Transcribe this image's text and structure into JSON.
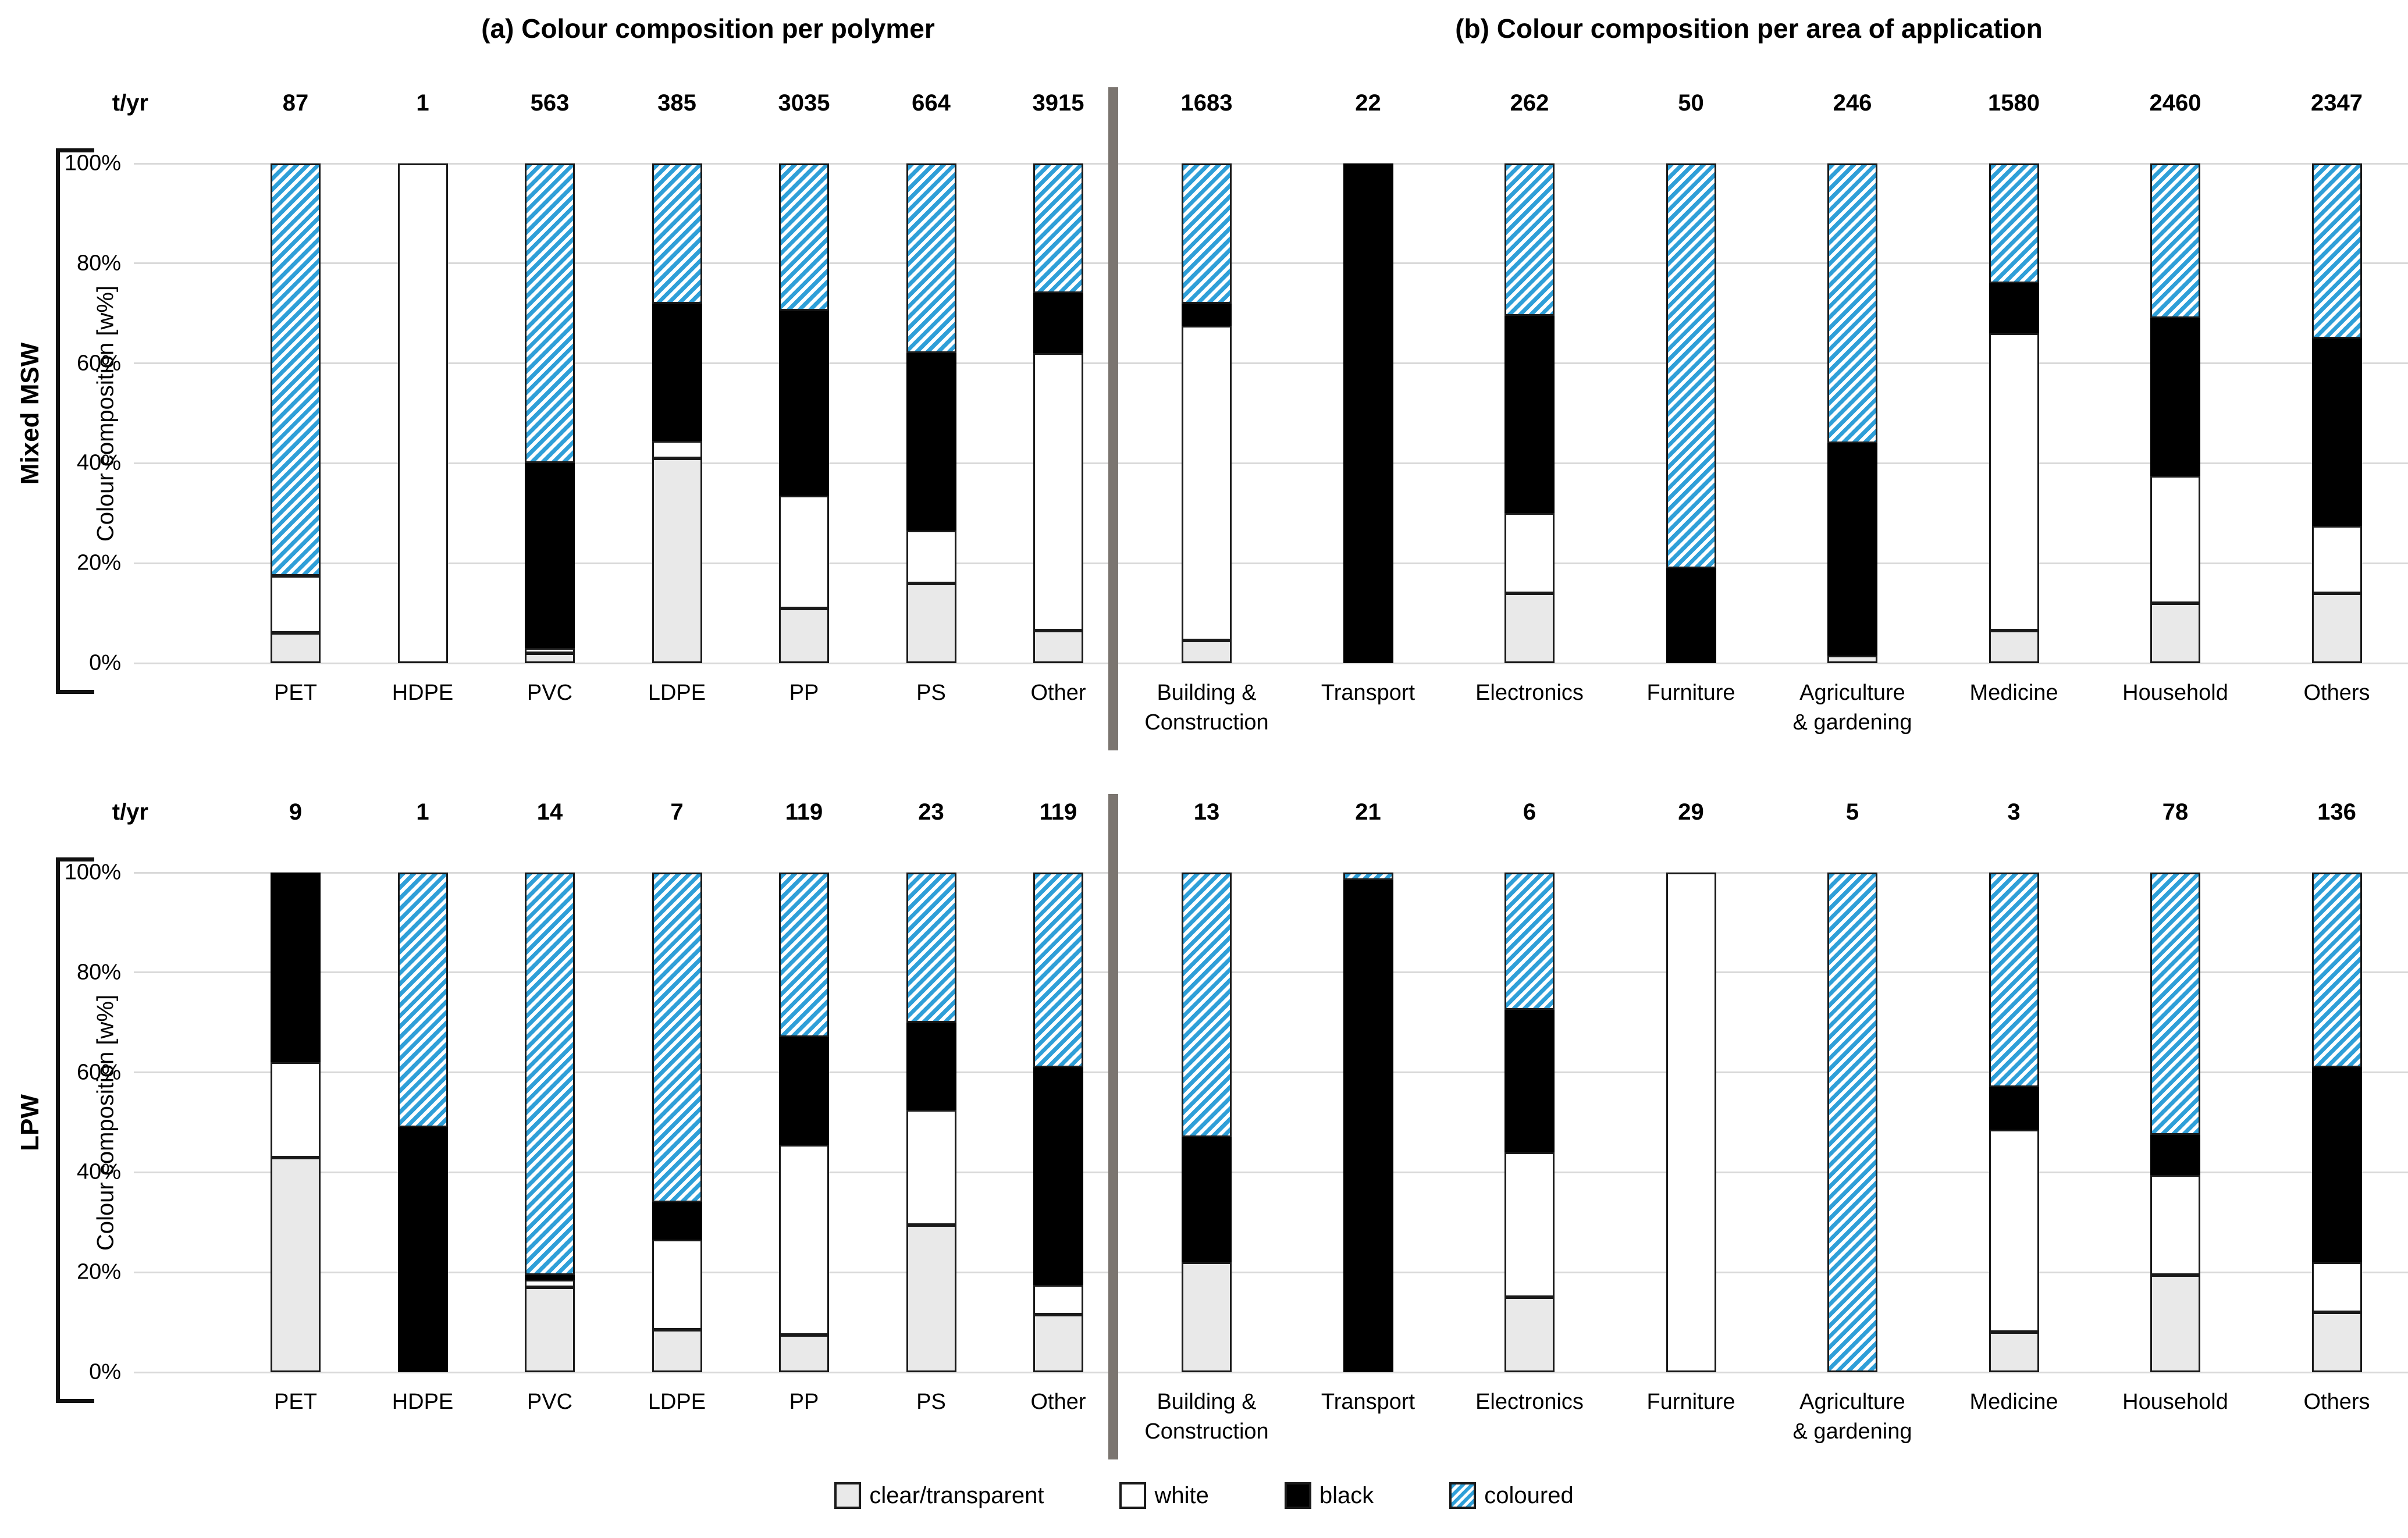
{
  "titles": {
    "a": "(a) Colour composition per polymer",
    "b": "(b) Colour composition per area of application"
  },
  "tyr_label": "t/yr",
  "y_axis": {
    "label": "Colour composition [w%]",
    "ticks": [
      "100%",
      "80%",
      "60%",
      "40%",
      "20%",
      "0%"
    ]
  },
  "legend": [
    {
      "key": "clear",
      "label": "clear/transparent"
    },
    {
      "key": "white",
      "label": "white"
    },
    {
      "key": "black",
      "label": "black"
    },
    {
      "key": "coloured",
      "label": "coloured"
    }
  ],
  "colors": {
    "clear_fill": "#e9e9e9",
    "white_fill": "#ffffff",
    "black_fill": "#000000",
    "coloured_stripe": "#2f9fd8",
    "bar_border": "#1a1a1a",
    "gridline": "#d9d9d9",
    "divider": "#7b7570"
  },
  "series_keys": [
    "clear",
    "white",
    "black",
    "coloured"
  ],
  "chart_data": [
    {
      "type": "bar",
      "stacked": true,
      "group": "Mixed MSW",
      "ylabel": "Colour composition [w%]",
      "ylim": [
        0,
        100
      ],
      "panels": [
        {
          "id": "a",
          "categories": [
            {
              "label": "PET",
              "tyr": "87",
              "clear": 6,
              "white": 11.5,
              "black": 0,
              "coloured": 82.5
            },
            {
              "label": "HDPE",
              "tyr": "1",
              "clear": 0,
              "white": 100,
              "black": 0,
              "coloured": 0
            },
            {
              "label": "PVC",
              "tyr": "563",
              "clear": 2,
              "white": 1,
              "black": 37,
              "coloured": 60
            },
            {
              "label": "LDPE",
              "tyr": "385",
              "clear": 41,
              "white": 3.5,
              "black": 27.5,
              "coloured": 28
            },
            {
              "label": "PP",
              "tyr": "3035",
              "clear": 11,
              "white": 22.5,
              "black": 37,
              "coloured": 29.5
            },
            {
              "label": "PS",
              "tyr": "664",
              "clear": 16,
              "white": 10.5,
              "black": 35.5,
              "coloured": 38
            },
            {
              "label": "Other",
              "tyr": "3915",
              "clear": 6.5,
              "white": 55.5,
              "black": 12,
              "coloured": 26
            }
          ]
        },
        {
          "id": "b",
          "categories": [
            {
              "label": "Building &\nConstruction",
              "tyr": "1683",
              "clear": 4.5,
              "white": 63,
              "black": 4.5,
              "coloured": 28
            },
            {
              "label": "Transport",
              "tyr": "22",
              "clear": 0,
              "white": 0,
              "black": 100,
              "coloured": 0
            },
            {
              "label": "Electronics",
              "tyr": "262",
              "clear": 14,
              "white": 16,
              "black": 39.5,
              "coloured": 30.5
            },
            {
              "label": "Furniture",
              "tyr": "50",
              "clear": 0,
              "white": 0,
              "black": 19,
              "coloured": 81
            },
            {
              "label": "Agriculture\n& gardening",
              "tyr": "246",
              "clear": 1.5,
              "white": 0,
              "black": 42.5,
              "coloured": 56
            },
            {
              "label": "Medicine",
              "tyr": "1580",
              "clear": 6.5,
              "white": 59.5,
              "black": 10,
              "coloured": 24
            },
            {
              "label": "Household",
              "tyr": "2460",
              "clear": 12,
              "white": 25.5,
              "black": 31.5,
              "coloured": 31
            },
            {
              "label": "Others",
              "tyr": "2347",
              "clear": 14,
              "white": 13.5,
              "black": 37.5,
              "coloured": 35
            }
          ]
        }
      ]
    },
    {
      "type": "bar",
      "stacked": true,
      "group": "LPW",
      "ylabel": "Colour composition [w%]",
      "ylim": [
        0,
        100
      ],
      "panels": [
        {
          "id": "a",
          "categories": [
            {
              "label": "PET",
              "tyr": "9",
              "clear": 43,
              "white": 19,
              "black": 38,
              "coloured": 0
            },
            {
              "label": "HDPE",
              "tyr": "1",
              "clear": 0,
              "white": 0,
              "black": 49,
              "coloured": 51
            },
            {
              "label": "PVC",
              "tyr": "14",
              "clear": 17,
              "white": 1.5,
              "black": 1,
              "coloured": 80.5
            },
            {
              "label": "LDPE",
              "tyr": "7",
              "clear": 8.5,
              "white": 18,
              "black": 7.5,
              "coloured": 66
            },
            {
              "label": "PP",
              "tyr": "119",
              "clear": 7.5,
              "white": 38,
              "black": 21.5,
              "coloured": 33
            },
            {
              "label": "PS",
              "tyr": "23",
              "clear": 29.5,
              "white": 23,
              "black": 17.5,
              "coloured": 30
            },
            {
              "label": "Other",
              "tyr": "119",
              "clear": 11.5,
              "white": 6,
              "black": 43.5,
              "coloured": 39
            }
          ]
        },
        {
          "id": "b",
          "categories": [
            {
              "label": "Building &\nConstruction",
              "tyr": "13",
              "clear": 22,
              "white": 0,
              "black": 25,
              "coloured": 53
            },
            {
              "label": "Transport",
              "tyr": "21",
              "clear": 0,
              "white": 0,
              "black": 98.5,
              "coloured": 1.5
            },
            {
              "label": "Electronics",
              "tyr": "6",
              "clear": 15,
              "white": 29,
              "black": 28.5,
              "coloured": 27.5
            },
            {
              "label": "Furniture",
              "tyr": "29",
              "clear": 0,
              "white": 100,
              "black": 0,
              "coloured": 0
            },
            {
              "label": "Agriculture\n& gardening",
              "tyr": "5",
              "clear": 0,
              "white": 0,
              "black": 0,
              "coloured": 100
            },
            {
              "label": "Medicine",
              "tyr": "3",
              "clear": 8,
              "white": 40.5,
              "black": 8.5,
              "coloured": 43
            },
            {
              "label": "Household",
              "tyr": "78",
              "clear": 19.5,
              "white": 20,
              "black": 8,
              "coloured": 52.5
            },
            {
              "label": "Others",
              "tyr": "136",
              "clear": 12,
              "white": 10,
              "black": 39,
              "coloured": 39
            }
          ]
        }
      ]
    }
  ]
}
